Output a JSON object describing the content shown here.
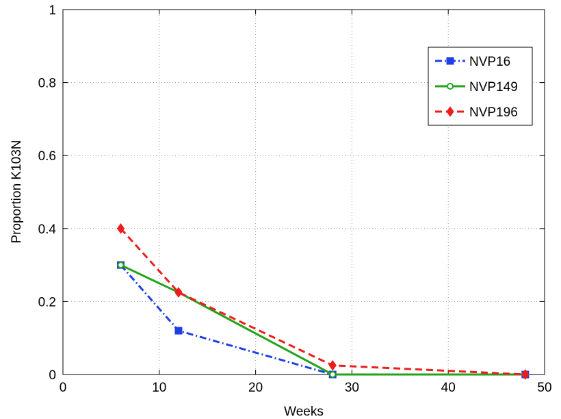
{
  "chart_data": {
    "type": "line",
    "title": "",
    "xlabel": "Weeks",
    "ylabel": "Proportion K103N",
    "xlim": [
      0,
      50
    ],
    "ylim": [
      0,
      1
    ],
    "xticks": [
      0,
      10,
      20,
      30,
      40,
      50
    ],
    "yticks": [
      0,
      0.2,
      0.4,
      0.6,
      0.8,
      1
    ],
    "xtick_labels": [
      "0",
      "10",
      "20",
      "30",
      "40",
      "50"
    ],
    "ytick_labels": [
      "0",
      "0.2",
      "0.4",
      "0.6",
      "0.8",
      "1"
    ],
    "grid": true,
    "legend_position": "top-right",
    "series": [
      {
        "name": "NVP16",
        "color": "#1f3fe6",
        "line_style": "dash-dot",
        "marker": "square",
        "x": [
          6,
          12,
          28,
          48
        ],
        "y": [
          0.3,
          0.12,
          0.0,
          0.0
        ]
      },
      {
        "name": "NVP149",
        "color": "#22a31a",
        "line_style": "solid",
        "marker": "circle",
        "x": [
          6,
          12,
          28,
          48
        ],
        "y": [
          0.3,
          0.225,
          0.0,
          0.0
        ]
      },
      {
        "name": "NVP196",
        "color": "#ee1c1c",
        "line_style": "dashed",
        "marker": "diamond",
        "x": [
          6,
          12,
          28,
          48
        ],
        "y": [
          0.4,
          0.225,
          0.025,
          0.0
        ]
      }
    ]
  }
}
